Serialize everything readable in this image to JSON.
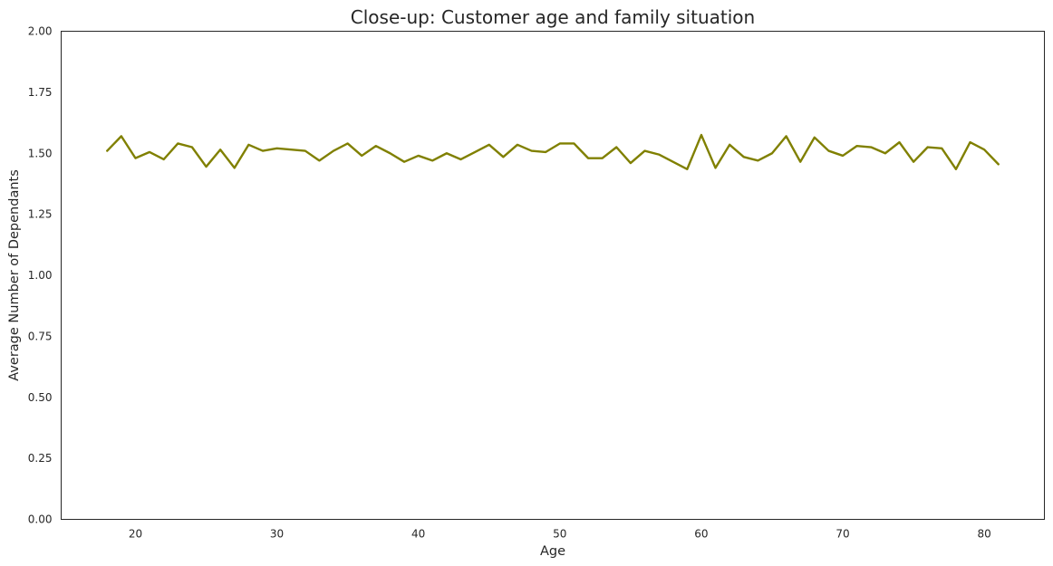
{
  "chart_data": {
    "type": "line",
    "title": "Close-up: Customer age and family situation",
    "xlabel": "Age",
    "ylabel": "Average Number of Dependants",
    "xlim": [
      14.75,
      84.25
    ],
    "ylim": [
      0,
      2
    ],
    "xticks": [
      20,
      30,
      40,
      50,
      60,
      70,
      80
    ],
    "yticks": [
      0.0,
      0.25,
      0.5,
      0.75,
      1.0,
      1.25,
      1.5,
      1.75,
      2.0
    ],
    "ytick_labels": [
      "0.00",
      "0.25",
      "0.50",
      "0.75",
      "1.00",
      "1.25",
      "1.50",
      "1.75",
      "2.00"
    ],
    "grid": false,
    "line_color": "#808000",
    "x": [
      18,
      19,
      20,
      21,
      22,
      23,
      24,
      25,
      26,
      27,
      28,
      29,
      30,
      31,
      32,
      33,
      34,
      35,
      36,
      37,
      38,
      39,
      40,
      41,
      42,
      43,
      44,
      45,
      46,
      47,
      48,
      49,
      50,
      51,
      52,
      53,
      54,
      55,
      56,
      57,
      58,
      59,
      60,
      61,
      62,
      63,
      64,
      65,
      66,
      67,
      68,
      69,
      70,
      71,
      72,
      73,
      74,
      75,
      76,
      77,
      78,
      79,
      80,
      81
    ],
    "y": [
      1.51,
      1.57,
      1.48,
      1.505,
      1.475,
      1.54,
      1.525,
      1.445,
      1.515,
      1.44,
      1.535,
      1.51,
      1.52,
      1.515,
      1.51,
      1.47,
      1.51,
      1.54,
      1.49,
      1.53,
      1.5,
      1.465,
      1.49,
      1.47,
      1.5,
      1.475,
      1.505,
      1.535,
      1.485,
      1.535,
      1.51,
      1.505,
      1.54,
      1.54,
      1.48,
      1.48,
      1.525,
      1.46,
      1.51,
      1.495,
      1.465,
      1.435,
      1.575,
      1.44,
      1.535,
      1.485,
      1.47,
      1.5,
      1.57,
      1.465,
      1.565,
      1.51,
      1.49,
      1.53,
      1.525,
      1.5,
      1.545,
      1.465,
      1.525,
      1.52,
      1.435,
      1.545,
      1.515,
      1.455
    ]
  }
}
